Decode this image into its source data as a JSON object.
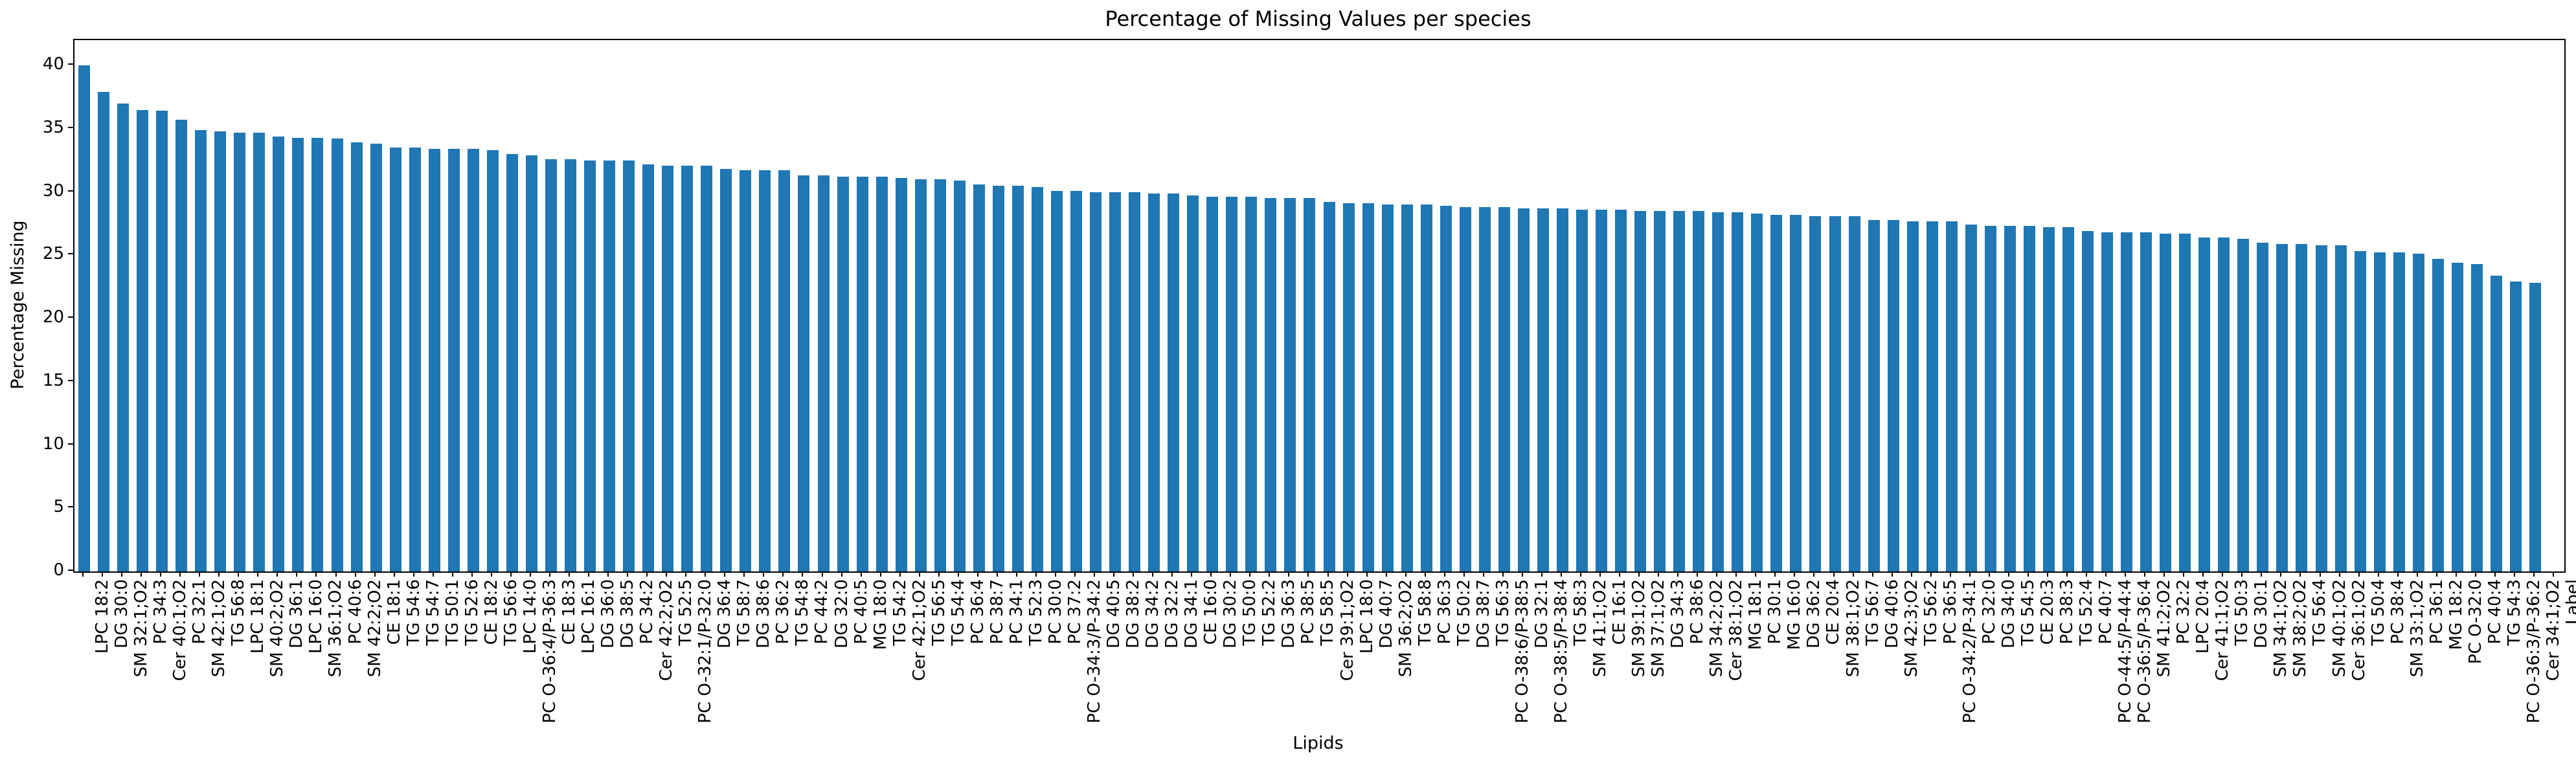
{
  "figure": {
    "title": "Percentage of Missing Values per species",
    "xlabel": "Lipids",
    "ylabel": "Percentage Missing"
  },
  "chart_data": {
    "type": "bar",
    "title": "Percentage of Missing Values per species",
    "xlabel": "Lipids",
    "ylabel": "Percentage Missing",
    "bar_color": "#1f77b4",
    "ylim": [
      0,
      42
    ],
    "yticks": [
      0,
      5,
      10,
      15,
      20,
      25,
      30,
      35,
      40
    ],
    "grid": false,
    "legend": "none",
    "x_tick_rotation": 90,
    "categories": [
      "LPC 18:2",
      "DG 30:0",
      "SM 32:1;O2",
      "PC 34:3",
      "Cer 40:1;O2",
      "PC 32:1",
      "SM 42:1;O2",
      "TG 56:8",
      "LPC 18:1",
      "SM 40:2;O2",
      "DG 36:1",
      "LPC 16:0",
      "SM 36:1;O2",
      "PC 40:6",
      "SM 42:2;O2",
      "CE 18:1",
      "TG 54:6",
      "TG 54:7",
      "TG 50:1",
      "TG 52:6",
      "CE 18:2",
      "TG 56:6",
      "LPC 14:0",
      "PC O-36:4/P-36:3",
      "CE 18:3",
      "LPC 16:1",
      "DG 36:0",
      "DG 38:5",
      "PC 34:2",
      "Cer 42:2;O2",
      "TG 52:5",
      "PC O-32:1/P-32:0",
      "DG 36:4",
      "TG 58:7",
      "DG 38:6",
      "PC 36:2",
      "TG 54:8",
      "PC 44:2",
      "DG 32:0",
      "PC 40:5",
      "MG 18:0",
      "TG 54:2",
      "Cer 42:1;O2",
      "TG 56:5",
      "TG 54:4",
      "PC 36:4",
      "PC 38:7",
      "PC 34:1",
      "TG 52:3",
      "PC 30:0",
      "PC 37:2",
      "PC O-34:3/P-34:2",
      "DG 40:5",
      "DG 38:2",
      "DG 34:2",
      "DG 32:2",
      "DG 34:1",
      "CE 16:0",
      "DG 30:2",
      "TG 50:0",
      "TG 52:2",
      "DG 36:3",
      "PC 38:5",
      "TG 58:5",
      "Cer 39:1;O2",
      "LPC 18:0",
      "DG 40:7",
      "SM 36:2;O2",
      "TG 58:8",
      "PC 36:3",
      "TG 50:2",
      "DG 38:7",
      "TG 56:3",
      "PC O-38:6/P-38:5",
      "DG 32:1",
      "PC O-38:5/P-38:4",
      "TG 58:3",
      "SM 41:1;O2",
      "CE 16:1",
      "SM 39:1;O2",
      "SM 37:1;O2",
      "DG 34:3",
      "PC 38:6",
      "SM 34:2;O2",
      "Cer 38:1;O2",
      "MG 18:1",
      "PC 30:1",
      "MG 16:0",
      "DG 36:2",
      "CE 20:4",
      "SM 38:1;O2",
      "TG 56:7",
      "DG 40:6",
      "SM 42:3;O2",
      "TG 56:2",
      "PC 36:5",
      "PC O-34:2/P-34:1",
      "PC 32:0",
      "DG 34:0",
      "TG 54:5",
      "CE 20:3",
      "PC 38:3",
      "TG 52:4",
      "PC 40:7",
      "PC O-44:5/P-44:4",
      "PC O-36:5/P-36:4",
      "SM 41:2;O2",
      "PC 32:2",
      "LPC 20:4",
      "Cer 41:1;O2",
      "TG 50:3",
      "DG 30:1",
      "SM 34:1;O2",
      "SM 38:2;O2",
      "TG 56:4",
      "SM 40:1;O2",
      "Cer 36:1;O2",
      "TG 50:4",
      "PC 38:4",
      "SM 33:1;O2",
      "PC 36:1",
      "MG 18:2",
      "PC O-32:0",
      "PC 40:4",
      "TG 54:3",
      "PC O-36:3/P-36:2",
      "Cer 34:1;O2",
      "Label"
    ],
    "values": [
      40.0,
      37.9,
      37.0,
      36.5,
      36.4,
      35.7,
      34.9,
      34.8,
      34.7,
      34.7,
      34.4,
      34.3,
      34.3,
      34.2,
      33.9,
      33.8,
      33.5,
      33.5,
      33.4,
      33.4,
      33.4,
      33.3,
      33.0,
      32.9,
      32.6,
      32.6,
      32.5,
      32.5,
      32.5,
      32.2,
      32.1,
      32.1,
      32.1,
      31.8,
      31.7,
      31.7,
      31.7,
      31.3,
      31.3,
      31.2,
      31.2,
      31.2,
      31.1,
      31.0,
      31.0,
      30.9,
      30.6,
      30.5,
      30.5,
      30.4,
      30.1,
      30.1,
      30.0,
      30.0,
      30.0,
      29.9,
      29.9,
      29.7,
      29.6,
      29.6,
      29.6,
      29.5,
      29.5,
      29.5,
      29.2,
      29.1,
      29.1,
      29.0,
      29.0,
      29.0,
      28.9,
      28.8,
      28.8,
      28.8,
      28.7,
      28.7,
      28.7,
      28.6,
      28.6,
      28.6,
      28.5,
      28.5,
      28.5,
      28.5,
      28.4,
      28.4,
      28.3,
      28.2,
      28.2,
      28.1,
      28.1,
      28.1,
      27.8,
      27.8,
      27.7,
      27.7,
      27.7,
      27.4,
      27.3,
      27.3,
      27.3,
      27.2,
      27.2,
      26.9,
      26.8,
      26.8,
      26.8,
      26.7,
      26.7,
      26.4,
      26.4,
      26.3,
      26.0,
      25.9,
      25.9,
      25.8,
      25.8,
      25.3,
      25.2,
      25.2,
      25.1,
      24.7,
      24.4,
      24.3,
      23.4,
      22.9,
      22.8,
      0.0
    ]
  }
}
